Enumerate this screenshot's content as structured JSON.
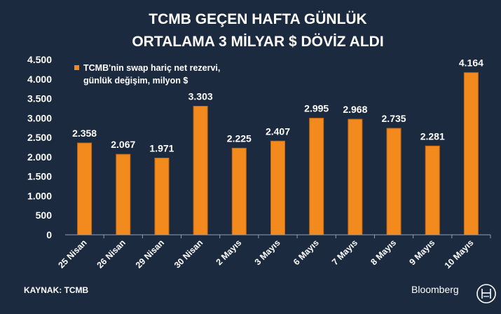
{
  "title_line1": "TCMB GEÇEN HAFTA GÜNLÜK",
  "title_line2": "ORTALAMA 3 MİLYAR $ DÖVİZ ALDI",
  "source": "KAYNAK: TCMB",
  "brand": "Bloomberg",
  "colors": {
    "background": "#1c2a3f",
    "bar": "#f28a1e",
    "bar_edge": "#c9660c",
    "text": "#ffffff",
    "grid": "#8da0b8"
  },
  "chart_data": {
    "type": "bar",
    "categories": [
      "25 Nisan",
      "26 Nisan",
      "29 Nisan",
      "30 Nisan",
      "2 Mayıs",
      "3 Mayıs",
      "6 Mayıs",
      "7 Mayıs",
      "8 Mayıs",
      "9 Mayıs",
      "10 Mayıs"
    ],
    "values": [
      2358,
      2067,
      1971,
      3303,
      2225,
      2407,
      2995,
      2968,
      2735,
      2281,
      4164
    ],
    "value_labels": [
      "2.358",
      "2.067",
      "1.971",
      "3.303",
      "2.225",
      "2.407",
      "2.995",
      "2.968",
      "2.735",
      "2.281",
      "4.164"
    ],
    "ylim": [
      0,
      4500
    ],
    "yticks": [
      0,
      500,
      1000,
      1500,
      2000,
      2500,
      3000,
      3500,
      4000,
      4500
    ],
    "ytick_labels": [
      "0",
      "500",
      "1.000",
      "1.500",
      "2.000",
      "2.500",
      "3.000",
      "3.500",
      "4.000",
      "4.500"
    ],
    "legend": {
      "line1": "TCMB'nin swap hariç net rezervi,",
      "line2": "günlük değişim, milyon $",
      "placement": "top-left"
    },
    "grid": false
  }
}
